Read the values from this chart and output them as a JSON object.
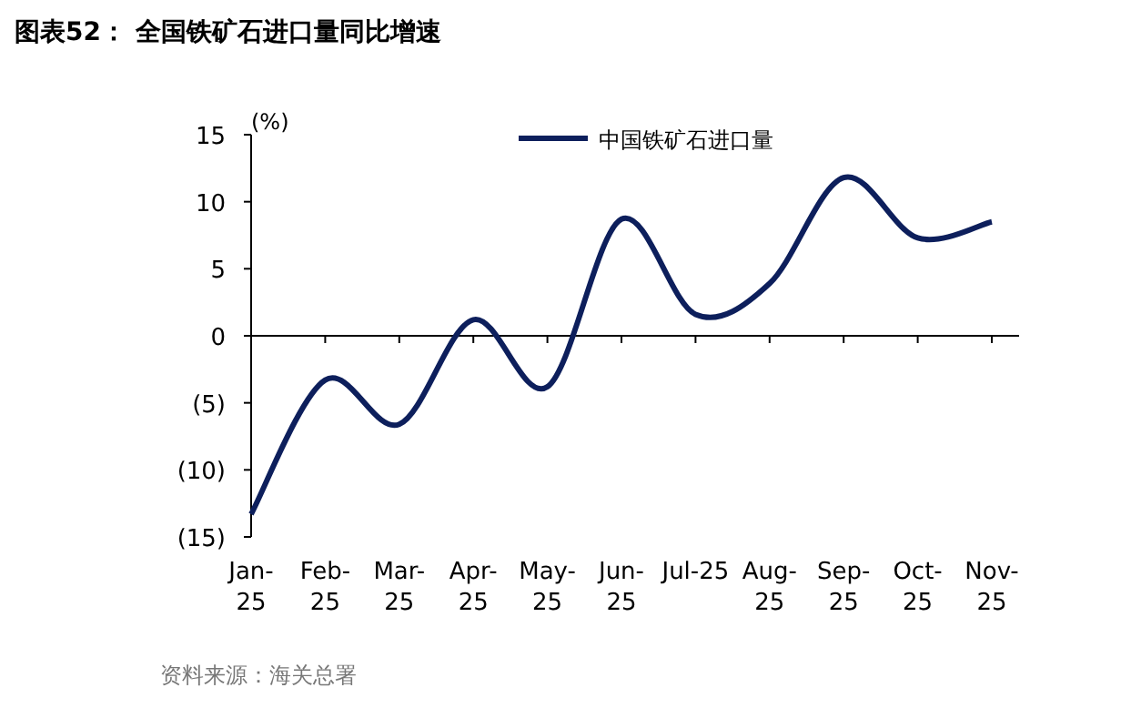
{
  "chart_data": {
    "type": "line",
    "title": "图表52：  全国铁矿石进口量同比增速",
    "ylabel": "(%)",
    "categories": [
      "Jan-25",
      "Feb-25",
      "Mar-25",
      "Apr-25",
      "May-25",
      "Jun-25",
      "Jul-25",
      "Aug-25",
      "Sep-25",
      "Oct-25",
      "Nov-25"
    ],
    "series": [
      {
        "name": "中国铁矿石进口量",
        "color": "#0d1f5c",
        "values": [
          -13.3,
          -3.3,
          -6.6,
          1.2,
          -3.8,
          8.7,
          1.6,
          3.9,
          11.8,
          7.3,
          8.5
        ]
      }
    ],
    "ylim": [
      -15,
      15
    ],
    "yticks": [
      15,
      10,
      5,
      0,
      {
        "value": -5,
        "label": "(5)"
      },
      {
        "value": -10,
        "label": "(10)"
      },
      {
        "value": -15,
        "label": "(15)"
      }
    ],
    "legend": "top right",
    "marker": "none",
    "line_style": "solid",
    "annotations": [
      "资料来源：海关总署"
    ]
  }
}
